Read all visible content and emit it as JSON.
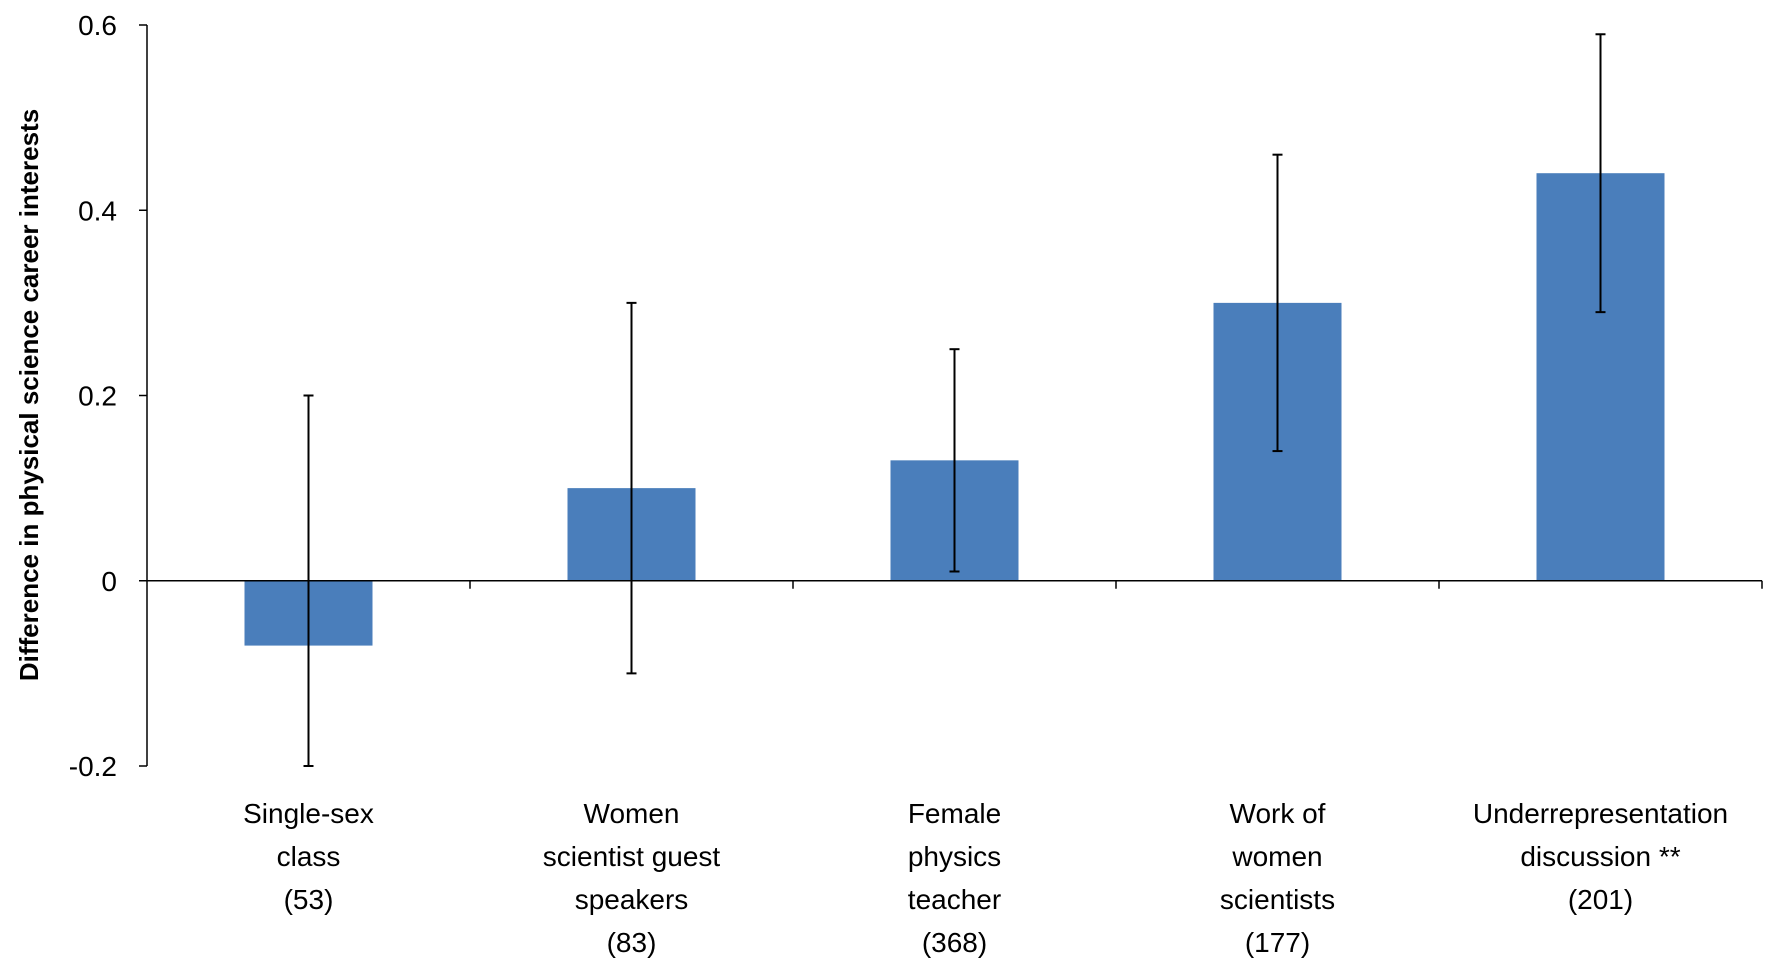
{
  "chart_data": {
    "type": "bar",
    "title": "",
    "xlabel": "",
    "ylabel": "Difference in physical science career interests",
    "ylim": [
      -0.2,
      0.6
    ],
    "yticks": [
      -0.2,
      0,
      0.2,
      0.4,
      0.6
    ],
    "ytick_labels": [
      "-0.2",
      "0",
      "0.2",
      "0.4",
      "0.6"
    ],
    "grid": false,
    "bar_color": "#4a7ebb",
    "categories": [
      [
        "Single-sex",
        "class",
        "(53)"
      ],
      [
        "Women",
        "scientist  guest",
        "speakers",
        "(83)"
      ],
      [
        "Female",
        "physics",
        "teacher",
        "(368)"
      ],
      [
        "Work of",
        "women",
        "scientists",
        "(177)"
      ],
      [
        "Underrepresentation",
        "discussion **",
        "(201)"
      ]
    ],
    "values": [
      -0.07,
      0.1,
      0.13,
      0.3,
      0.44
    ],
    "error_low": [
      -0.2,
      -0.1,
      0.01,
      0.14,
      0.29
    ],
    "error_high": [
      0.2,
      0.3,
      0.25,
      0.46,
      0.59
    ]
  }
}
